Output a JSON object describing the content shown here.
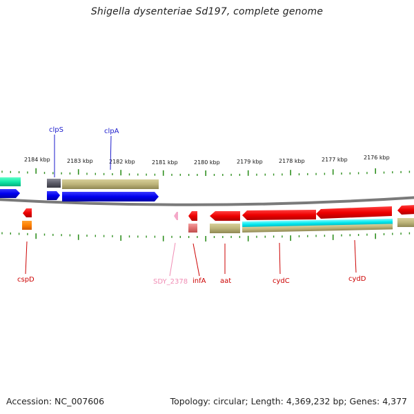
{
  "title": "Shigella dysenteriae Sd197, complete genome",
  "footer": {
    "accession": "Accession: NC_007606",
    "summary": "Topology: circular; Length: 4,369,232 bp; Genes: 4,377"
  },
  "colors": {
    "backbone": "#7a7a7a",
    "tick": "#2f8f1f",
    "label_blue": "#1a1acc",
    "label_red": "#cc0000",
    "label_pink": "#f08cb4"
  },
  "ticks": [
    "2184 kbp",
    "2183 kbp",
    "2182 kbp",
    "2181 kbp",
    "2180 kbp",
    "2179 kbp",
    "2178 kbp",
    "2177 kbp",
    "2176 kbp"
  ],
  "genes_top": [
    {
      "name": "clpS",
      "color": "label_blue"
    },
    {
      "name": "clpA",
      "color": "label_blue"
    }
  ],
  "genes_bottom": [
    {
      "name": "cspD",
      "color": "label_red"
    },
    {
      "name": "SDY_2378",
      "color": "label_pink"
    },
    {
      "name": "infA",
      "color": "label_red"
    },
    {
      "name": "aat",
      "color": "label_red"
    },
    {
      "name": "cydC",
      "color": "label_red"
    },
    {
      "name": "cydD",
      "color": "label_red"
    }
  ]
}
